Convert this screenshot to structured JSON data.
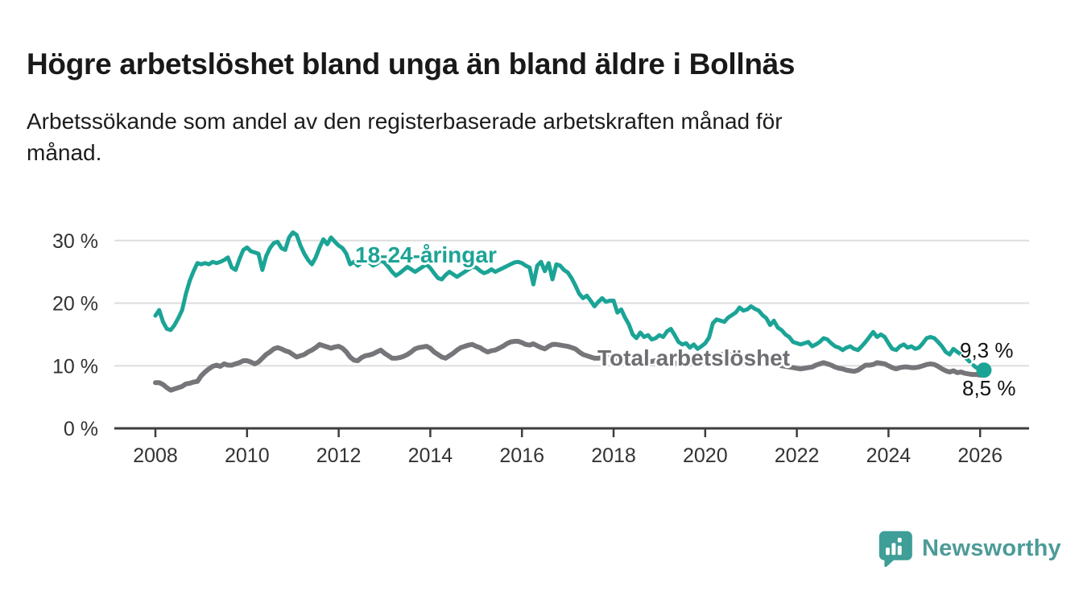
{
  "header": {
    "title": "Högre arbetslöshet bland unga än bland äldre i Bollnäs",
    "subtitle_lines": [
      "Arbetssökande som andel av den registerbaserade arbetskraften månad för",
      "månad."
    ]
  },
  "chart_data": {
    "type": "line",
    "title": "Högre arbetslöshet bland unga än bland äldre i Bollnäs",
    "subtitle": "Arbetssökande som andel av den registerbaserade arbetskraften månad för månad.",
    "x_unit": "month",
    "x_start": "2008-01",
    "x_end": "2026-02",
    "x_ticks": [
      2008,
      2010,
      2012,
      2014,
      2016,
      2018,
      2020,
      2022,
      2024,
      2026
    ],
    "y_ticks": [
      {
        "value": 0,
        "label": "0 %"
      },
      {
        "value": 10,
        "label": "10 %"
      },
      {
        "value": 20,
        "label": "20 %"
      },
      {
        "value": 30,
        "label": "30 %"
      }
    ],
    "ylim": [
      0,
      32
    ],
    "grid": true,
    "legend": "inline-labels",
    "style": {
      "grid_color": "#dedede",
      "axis_color": "#3d3d3d",
      "tick_label_color": "#333333"
    },
    "series": [
      {
        "name": "18-24-åringar",
        "color": "#1ba496",
        "stroke_width": 5,
        "final_value_label": "9,3 %",
        "dashed_tail_start_index": 212,
        "end_dot": true,
        "values": [
          18.0,
          18.9,
          17.0,
          15.9,
          15.7,
          16.5,
          17.6,
          18.9,
          21.5,
          23.6,
          25.1,
          26.4,
          26.2,
          26.4,
          26.2,
          26.6,
          26.4,
          26.6,
          26.9,
          27.3,
          25.7,
          25.3,
          27.0,
          28.5,
          28.9,
          28.3,
          28.1,
          27.9,
          25.3,
          27.5,
          28.8,
          29.6,
          29.8,
          28.8,
          28.5,
          30.5,
          31.3,
          30.9,
          29.2,
          27.9,
          26.9,
          26.2,
          27.3,
          28.9,
          30.2,
          29.4,
          30.5,
          29.8,
          29.2,
          28.8,
          27.9,
          26.2,
          26.6,
          26.0,
          26.5,
          27.0,
          26.5,
          26.0,
          26.3,
          26.8,
          26.5,
          25.8,
          25.0,
          24.4,
          24.8,
          25.3,
          25.8,
          25.4,
          25.0,
          25.4,
          25.8,
          26.2,
          25.6,
          24.8,
          24.0,
          23.8,
          24.5,
          25.0,
          24.6,
          24.2,
          24.6,
          25.0,
          25.4,
          25.8,
          25.7,
          25.2,
          24.8,
          25.0,
          25.4,
          25.0,
          25.3,
          25.6,
          25.9,
          26.2,
          26.5,
          26.6,
          26.4,
          26.0,
          25.7,
          23.0,
          26.0,
          26.6,
          25.1,
          26.4,
          23.8,
          26.2,
          26.0,
          25.3,
          24.9,
          24.0,
          22.8,
          21.5,
          20.8,
          21.2,
          20.4,
          19.5,
          20.2,
          20.8,
          20.2,
          20.4,
          20.4,
          18.5,
          19.0,
          17.7,
          16.6,
          15.0,
          14.4,
          15.3,
          14.6,
          14.9,
          14.2,
          14.4,
          14.9,
          14.6,
          15.5,
          15.9,
          14.9,
          13.8,
          13.4,
          13.6,
          12.9,
          13.4,
          12.7,
          13.1,
          13.6,
          14.5,
          16.8,
          17.4,
          17.2,
          17.0,
          17.7,
          18.1,
          18.5,
          19.3,
          18.8,
          19.0,
          19.5,
          19.1,
          18.8,
          18.1,
          17.6,
          16.5,
          17.2,
          16.1,
          15.7,
          15.0,
          14.6,
          13.8,
          13.6,
          13.4,
          13.6,
          13.8,
          13.1,
          13.4,
          13.8,
          14.4,
          14.2,
          13.6,
          13.1,
          12.9,
          12.5,
          12.9,
          13.1,
          12.7,
          12.5,
          13.1,
          13.8,
          14.6,
          15.4,
          14.6,
          15.0,
          14.6,
          13.6,
          12.7,
          12.5,
          13.1,
          13.4,
          12.9,
          13.1,
          12.7,
          12.9,
          13.6,
          14.4,
          14.6,
          14.4,
          13.8,
          13.1,
          12.2,
          11.8,
          12.7,
          12.2,
          11.8,
          11.4,
          10.8,
          10.2,
          9.7,
          9.5,
          9.3
        ]
      },
      {
        "name": "Total arbetslöshet",
        "color": "#75757a",
        "stroke_width": 6,
        "final_value_label": "8,5 %",
        "end_dot": false,
        "values": [
          7.3,
          7.3,
          7.0,
          6.5,
          6.1,
          6.3,
          6.5,
          6.7,
          7.1,
          7.2,
          7.4,
          7.5,
          8.4,
          9.0,
          9.5,
          9.9,
          10.1,
          9.9,
          10.3,
          10.1,
          10.1,
          10.3,
          10.5,
          10.8,
          10.8,
          10.6,
          10.3,
          10.6,
          11.2,
          11.8,
          12.2,
          12.7,
          12.9,
          12.7,
          12.4,
          12.2,
          11.8,
          11.4,
          11.6,
          11.8,
          12.2,
          12.5,
          12.9,
          13.4,
          13.2,
          13.0,
          12.8,
          13.0,
          13.1,
          12.8,
          12.2,
          11.4,
          10.9,
          10.8,
          11.3,
          11.6,
          11.7,
          11.9,
          12.2,
          12.5,
          12.0,
          11.6,
          11.2,
          11.2,
          11.3,
          11.5,
          11.8,
          12.2,
          12.7,
          12.9,
          13.0,
          13.1,
          12.8,
          12.2,
          11.8,
          11.4,
          11.2,
          11.6,
          12.0,
          12.5,
          12.9,
          13.1,
          13.3,
          13.4,
          13.1,
          12.9,
          12.5,
          12.2,
          12.4,
          12.5,
          12.8,
          13.1,
          13.5,
          13.8,
          13.9,
          13.9,
          13.7,
          13.4,
          13.3,
          13.5,
          13.2,
          12.9,
          12.7,
          13.1,
          13.4,
          13.4,
          13.3,
          13.2,
          13.1,
          12.9,
          12.7,
          12.2,
          11.8,
          11.6,
          11.4,
          11.2,
          11.2,
          11.3,
          11.4,
          11.4,
          11.3,
          11.1,
          10.9,
          10.8,
          10.7,
          10.8,
          10.9,
          10.8,
          10.7,
          10.6,
          10.7,
          10.8,
          10.8,
          10.7,
          10.6,
          10.5,
          10.4,
          10.5,
          10.6,
          10.5,
          10.4,
          10.4,
          10.5,
          10.6,
          10.7,
          10.8,
          11.2,
          11.6,
          11.8,
          11.9,
          11.8,
          11.7,
          11.6,
          11.5,
          11.4,
          11.4,
          11.3,
          11.2,
          11.0,
          10.8,
          10.6,
          10.5,
          10.4,
          10.2,
          10.0,
          9.9,
          9.8,
          9.7,
          9.6,
          9.5,
          9.6,
          9.7,
          9.8,
          10.1,
          10.3,
          10.5,
          10.3,
          10.1,
          9.8,
          9.6,
          9.5,
          9.3,
          9.2,
          9.1,
          9.3,
          9.7,
          10.1,
          10.1,
          10.2,
          10.5,
          10.4,
          10.3,
          10.0,
          9.7,
          9.5,
          9.7,
          9.8,
          9.8,
          9.7,
          9.7,
          9.8,
          10.0,
          10.2,
          10.3,
          10.2,
          9.9,
          9.5,
          9.2,
          9.0,
          9.2,
          8.9,
          9.0,
          8.8,
          8.7,
          8.6,
          8.6,
          8.5,
          8.5
        ]
      }
    ]
  },
  "branding": {
    "logo_text": "Newsworthy",
    "logo_color": "#4c9b98",
    "logo_icon": "speech-bubble-bar-chart"
  }
}
